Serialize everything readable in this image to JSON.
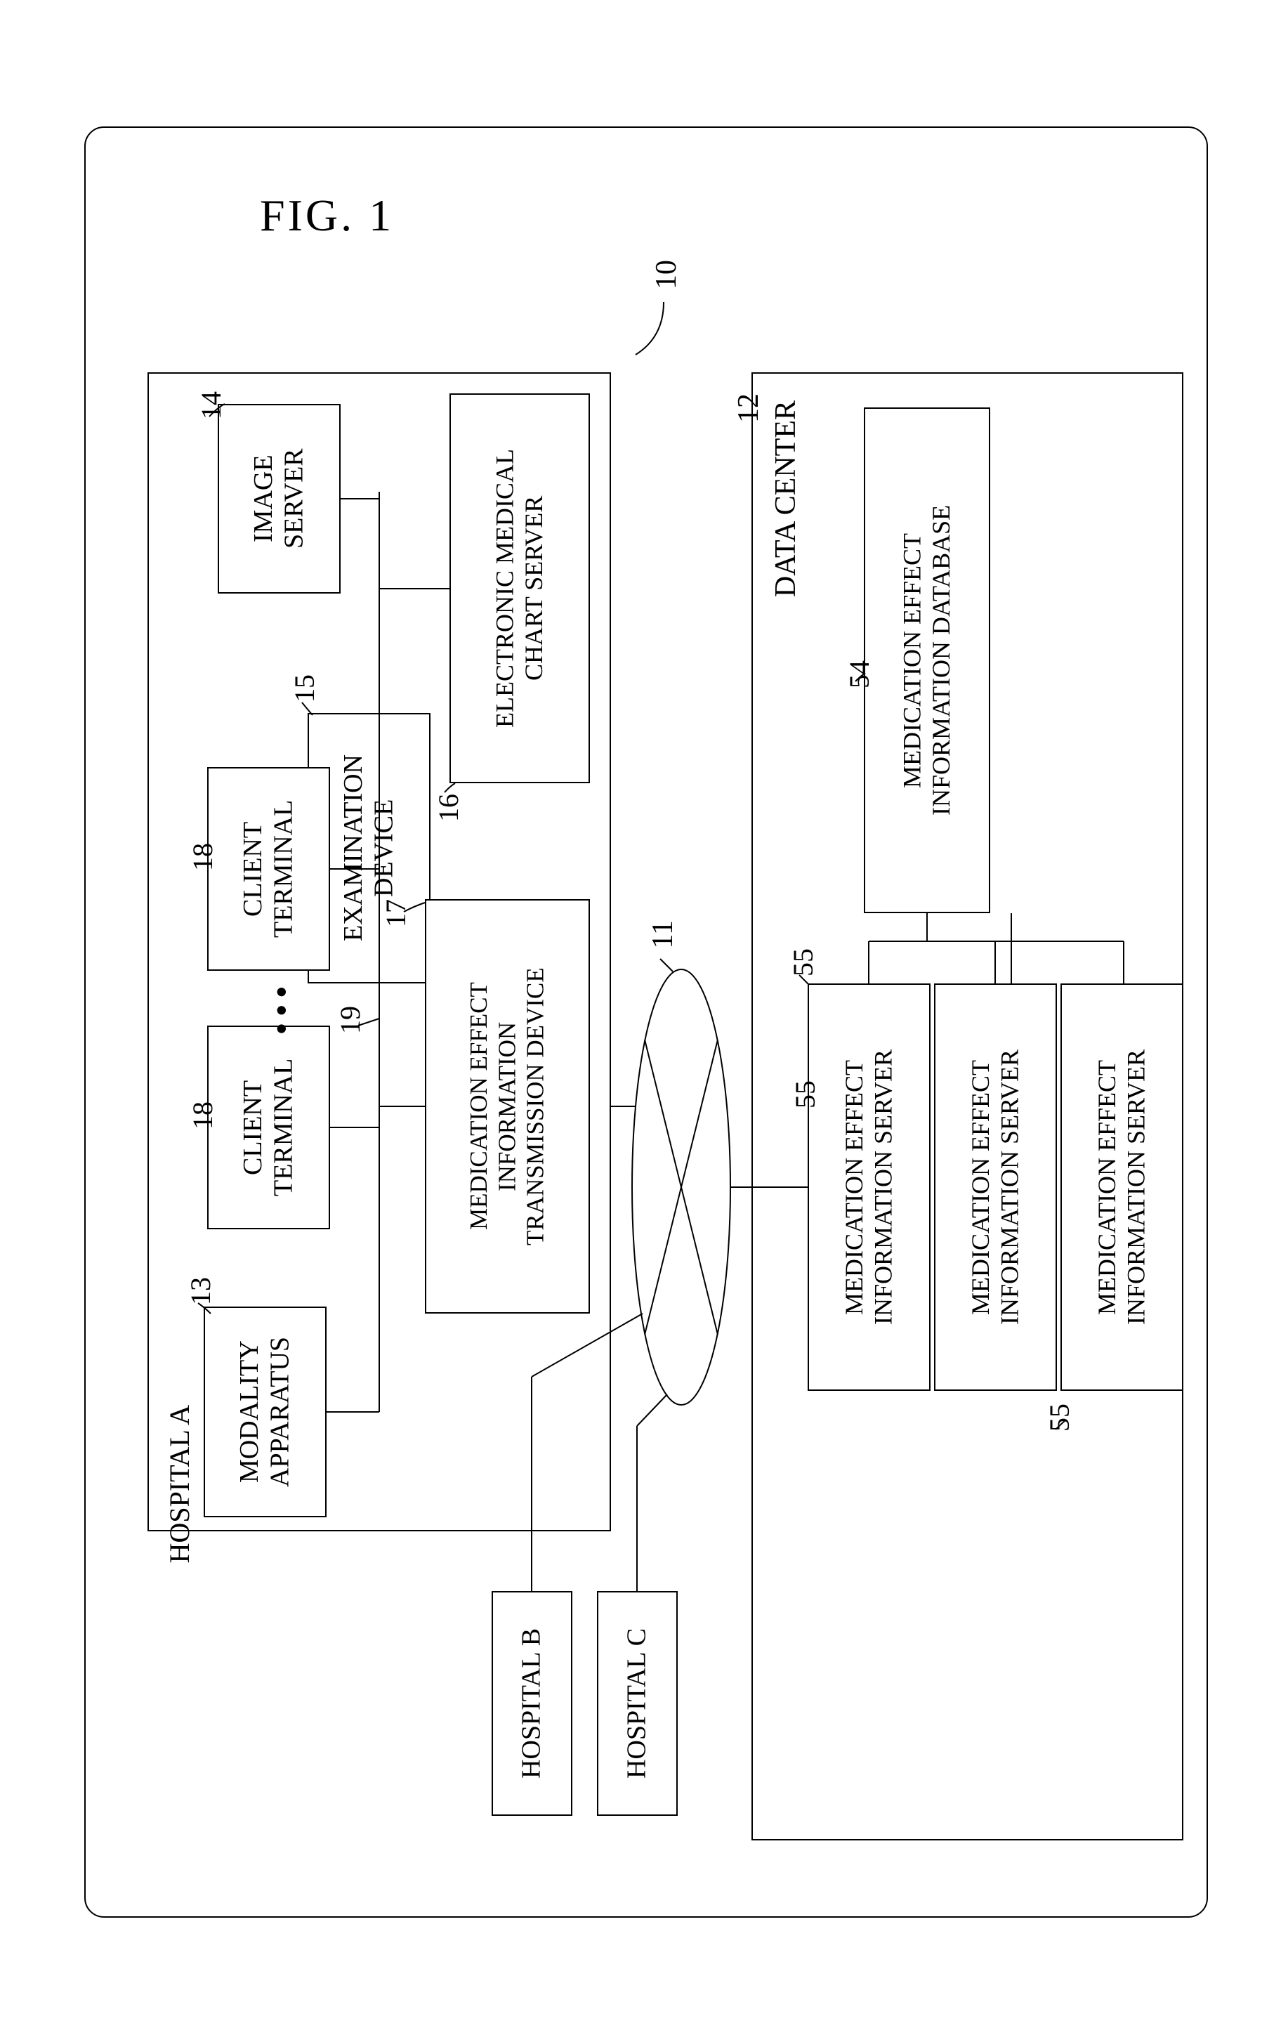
{
  "figure": {
    "title": "FIG. 1",
    "system_ref": "10",
    "network_ref": "11"
  },
  "hospitalA": {
    "title": "HOSPITAL A",
    "modality": {
      "label": "MODALITY\nAPPARATUS",
      "ref": "13"
    },
    "imageServer": {
      "label": "IMAGE\nSERVER",
      "ref": "14"
    },
    "examination": {
      "label": "EXAMINATION\nDEVICE",
      "ref": "15"
    },
    "emrServer": {
      "label": "ELECTRONIC MEDICAL\nCHART SERVER",
      "ref": "16"
    },
    "meitDevice": {
      "label": "MEDICATION EFFECT\nINFORMATION\nTRANSMISSION DEVICE",
      "ref": "17"
    },
    "client1": {
      "label": "CLIENT\nTERMINAL",
      "ref": "18"
    },
    "client2": {
      "label": "CLIENT\nTERMINAL",
      "ref": "18"
    },
    "bus_ref": "19"
  },
  "hospitalB": {
    "label": "HOSPITAL B"
  },
  "hospitalC": {
    "label": "HOSPITAL C"
  },
  "dataCenter": {
    "title": "DATA CENTER",
    "ref": "12",
    "database": {
      "label": "MEDICATION EFFECT\nINFORMATION DATABASE",
      "ref": "54"
    },
    "server1": {
      "label": "MEDICATION EFFECT\nINFORMATION SERVER",
      "ref": "55"
    },
    "server2": {
      "label": "MEDICATION EFFECT\nINFORMATION SERVER",
      "ref": "55"
    },
    "server3": {
      "label": "MEDICATION EFFECT\nINFORMATION SERVER",
      "ref": "55"
    }
  },
  "style": {
    "stroke": "#000000",
    "stroke_width": 2,
    "font_size_block": 38,
    "font_size_label": 42,
    "font_size_title": 44,
    "font_size_fig": 64
  }
}
